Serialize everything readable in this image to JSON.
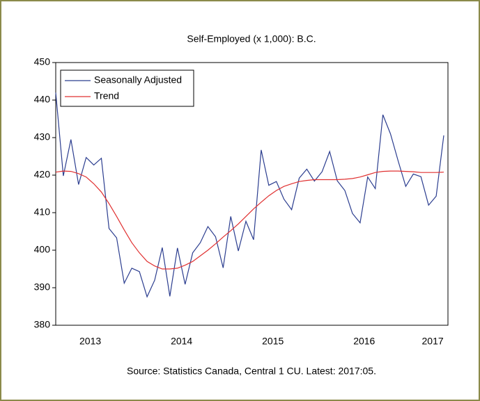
{
  "chart_data": {
    "type": "line",
    "title": "Self-Employed (x 1,000): B.C.",
    "source": "Source: Statistics Canada, Central 1 CU. Latest: 2017:05.",
    "categories": [
      null,
      null,
      null,
      null,
      null,
      "2013",
      null,
      null,
      null,
      null,
      null,
      null,
      null,
      null,
      null,
      null,
      null,
      "2014",
      null,
      null,
      null,
      null,
      null,
      null,
      null,
      null,
      null,
      null,
      null,
      "2015",
      null,
      null,
      null,
      null,
      null,
      null,
      null,
      null,
      null,
      null,
      null,
      "2016",
      null,
      null,
      null,
      null,
      null,
      null,
      null,
      null,
      "2017",
      null
    ],
    "series": [
      {
        "name": "Seasonally Adjusted",
        "color": "#2b3d8f",
        "values": [
          442,
          419.8,
          429.5,
          417.5,
          424.7,
          422.7,
          424.5,
          405.8,
          403.3,
          391.2,
          395.2,
          394.3,
          387.6,
          392.0,
          400.7,
          387.7,
          400.6,
          390.9,
          399.3,
          402.0,
          406.3,
          403.6,
          395.3,
          409.0,
          399.8,
          407.7,
          402.8,
          426.7,
          417.3,
          418.3,
          413.6,
          410.8,
          419.2,
          421.6,
          418.4,
          420.9,
          426.3,
          418.5,
          415.9,
          409.8,
          407.3,
          419.5,
          416.4,
          436.1,
          431.0,
          423.8,
          417.0,
          420.3,
          419.6,
          412.0,
          414.4,
          430.6
        ]
      },
      {
        "name": "Trend",
        "color": "#e03030",
        "values": [
          420.8,
          421.1,
          421,
          420.4,
          419.5,
          417.7,
          415.5,
          412.4,
          409,
          405.4,
          402,
          399.3,
          397,
          395.8,
          395,
          395,
          395.2,
          396,
          397,
          398.5,
          400,
          401.7,
          403.5,
          405.2,
          407,
          409,
          411,
          412.8,
          414.5,
          415.9,
          417,
          417.7,
          418.3,
          418.6,
          418.8,
          418.8,
          418.8,
          418.8,
          418.9,
          419.1,
          419.5,
          420.1,
          420.7,
          421,
          421.1,
          421.1,
          421,
          420.9,
          420.7,
          420.7,
          420.7,
          420.8
        ]
      }
    ],
    "ylim": [
      380,
      450
    ],
    "yticks": [
      380,
      390,
      400,
      410,
      420,
      430,
      440,
      450
    ]
  }
}
